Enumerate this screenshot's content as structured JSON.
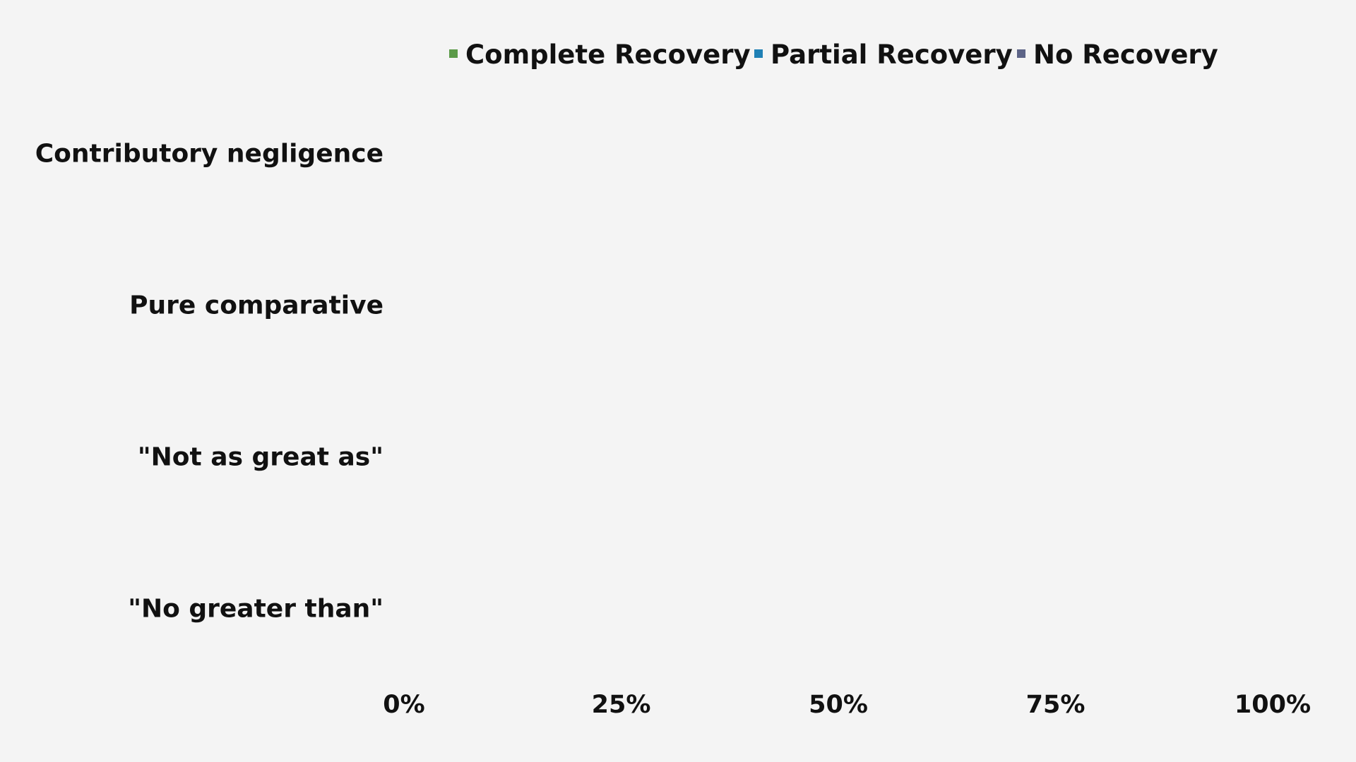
{
  "chart_data": {
    "type": "bar",
    "orientation": "horizontal",
    "stacked": true,
    "categories": [
      "Contributory negligence",
      "Pure comparative",
      "\"Not as great as\"",
      "\"No greater than\""
    ],
    "series": [
      {
        "name": "Complete Recovery",
        "color": "#5b9a48",
        "values": [
          0,
          0,
          0,
          0
        ]
      },
      {
        "name": "Partial Recovery",
        "color": "#1f80b5",
        "values": [
          0,
          0,
          0,
          0
        ]
      },
      {
        "name": "No Recovery",
        "color": "#5d6487",
        "values": [
          0,
          0,
          0,
          0
        ]
      }
    ],
    "xlim": [
      0,
      100
    ],
    "xticks": [
      0,
      25,
      50,
      75,
      100
    ],
    "xtick_labels": [
      "0%",
      "25%",
      "50%",
      "75%",
      "100%"
    ],
    "legend_position": "top",
    "grid": false
  }
}
